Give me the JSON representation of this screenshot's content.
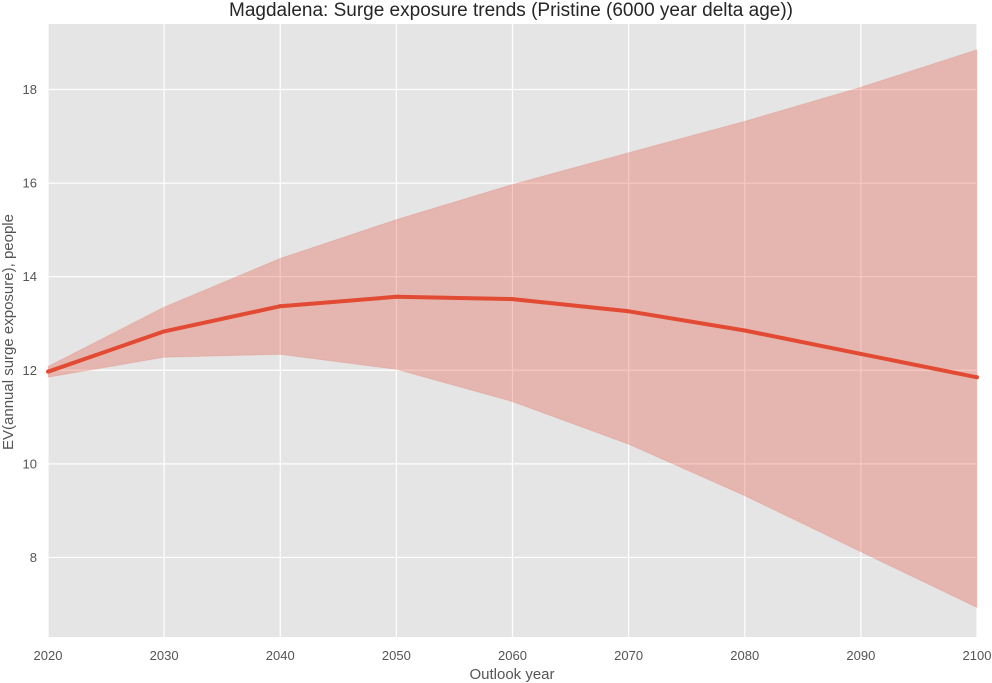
{
  "chart_data": {
    "type": "line",
    "title": "Magdalena: Surge exposure trends (Pristine (6000 year delta age))",
    "xlabel": "Outlook year",
    "ylabel": "EV(annual surge exposure), people",
    "x": [
      2020,
      2030,
      2040,
      2050,
      2060,
      2070,
      2080,
      2090,
      2100
    ],
    "series": [
      {
        "values": [
          11.97,
          12.83,
          13.37,
          13.57,
          13.52,
          13.26,
          12.85,
          12.35,
          11.85
        ],
        "lower": [
          11.85,
          12.28,
          12.34,
          12.02,
          11.33,
          10.42,
          9.32,
          8.12,
          6.93
        ],
        "upper": [
          12.08,
          13.35,
          14.39,
          15.22,
          15.97,
          16.65,
          17.32,
          18.05,
          18.85
        ],
        "color": "#E24A33",
        "band_color": "#E24A33"
      }
    ],
    "xlim": [
      2020,
      2100
    ],
    "ylim": [
      6.3,
      19.4
    ],
    "xticks": [
      "2020",
      "2030",
      "2040",
      "2050",
      "2060",
      "2070",
      "2080",
      "2090",
      "2100"
    ],
    "yticks": [
      "8",
      "10",
      "12",
      "14",
      "16",
      "18"
    ],
    "grid": true,
    "background": "#E5E5E5"
  }
}
